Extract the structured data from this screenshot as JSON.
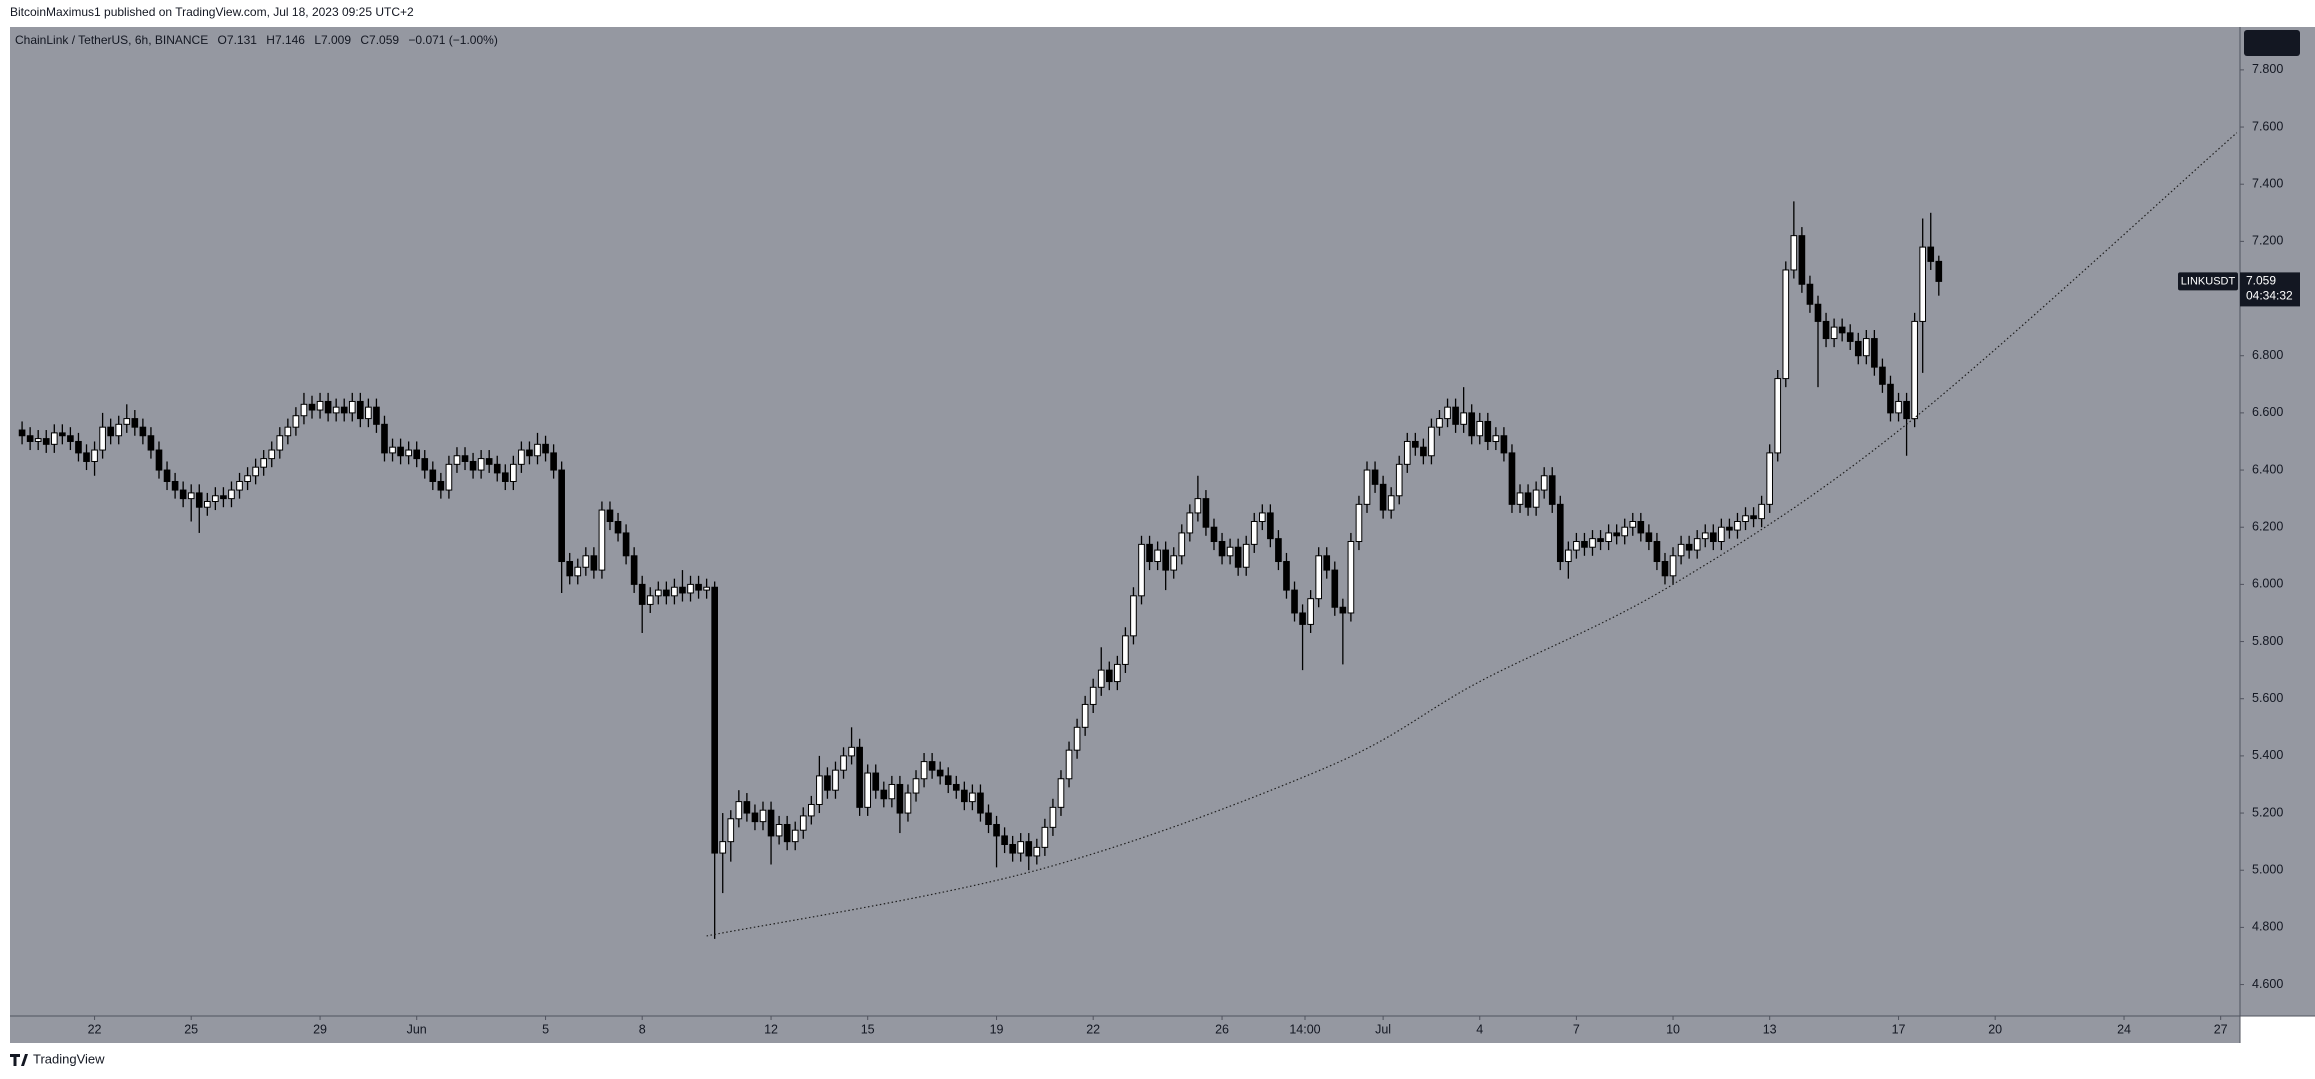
{
  "chart_data": {
    "type": "candlestick",
    "publisher": "BitcoinMaximus1 published on TradingView.com, Jul 18, 2023 09:25 UTC+2",
    "legend": {
      "symbol": "ChainLink / TetherUS, 6h, BINANCE",
      "o_label": "O",
      "o_value": "7.131",
      "h_label": "H",
      "h_value": "7.146",
      "l_label": "L",
      "l_value": "7.009",
      "c_label": "C",
      "c_value": "7.059",
      "change": "−0.071 (−1.00%)"
    },
    "badge": {
      "symbol": "LINKUSDT",
      "price": "7.059",
      "countdown": "04:34:32"
    },
    "watermark": "TradingView",
    "background": "#9598a1",
    "up_color": "#ffffff",
    "down_color": "#000000",
    "wick_color": "#000000",
    "grid": false,
    "xlim": [
      -1.5,
      275.4
    ],
    "xticks": [
      {
        "value": 9,
        "label": "22"
      },
      {
        "value": 21,
        "label": "25"
      },
      {
        "value": 37,
        "label": "29"
      },
      {
        "value": 49,
        "label": "Jun"
      },
      {
        "value": 65,
        "label": "5"
      },
      {
        "value": 77,
        "label": "8"
      },
      {
        "value": 93,
        "label": "12"
      },
      {
        "value": 105,
        "label": "15"
      },
      {
        "value": 121,
        "label": "19"
      },
      {
        "value": 133,
        "label": "22"
      },
      {
        "value": 149,
        "label": "26"
      },
      {
        "value": 159.3,
        "label": "14:00"
      },
      {
        "value": 169,
        "label": "Jul"
      },
      {
        "value": 181,
        "label": "4"
      },
      {
        "value": 193,
        "label": "7"
      },
      {
        "value": 205,
        "label": "10"
      },
      {
        "value": 217,
        "label": "13"
      },
      {
        "value": 233,
        "label": "17"
      },
      {
        "value": 245,
        "label": "20"
      },
      {
        "value": 261,
        "label": "24"
      },
      {
        "value": 273,
        "label": "27"
      }
    ],
    "ylim": [
      4.49,
      7.95
    ],
    "yticks": [
      {
        "value": 4.6,
        "label": "4.600"
      },
      {
        "value": 4.8,
        "label": "4.800"
      },
      {
        "value": 5.0,
        "label": "5.000"
      },
      {
        "value": 5.2,
        "label": "5.200"
      },
      {
        "value": 5.4,
        "label": "5.400"
      },
      {
        "value": 5.6,
        "label": "5.600"
      },
      {
        "value": 5.8,
        "label": "5.800"
      },
      {
        "value": 6.0,
        "label": "6.000"
      },
      {
        "value": 6.2,
        "label": "6.200"
      },
      {
        "value": 6.4,
        "label": "6.400"
      },
      {
        "value": 6.6,
        "label": "6.600"
      },
      {
        "value": 6.8,
        "label": "6.800"
      },
      {
        "value": 7.0,
        "label": "7.000"
      },
      {
        "value": 7.2,
        "label": "7.200"
      },
      {
        "value": 7.4,
        "label": "7.400"
      },
      {
        "value": 7.6,
        "label": "7.600"
      },
      {
        "value": 7.8,
        "label": "7.800"
      }
    ],
    "open": [
      6.54,
      6.52,
      6.5,
      6.51,
      6.49,
      6.53,
      6.52,
      6.5,
      6.46,
      6.43,
      6.47,
      6.55,
      6.52,
      6.56,
      6.58,
      6.55,
      6.52,
      6.47,
      6.4,
      6.36,
      6.33,
      6.3,
      6.32,
      6.27,
      6.29,
      6.31,
      6.3,
      6.33,
      6.36,
      6.38,
      6.41,
      6.44,
      6.47,
      6.52,
      6.55,
      6.59,
      6.63,
      6.61,
      6.64,
      6.6,
      6.62,
      6.6,
      6.64,
      6.58,
      6.62,
      6.56,
      6.46,
      6.48,
      6.45,
      6.47,
      6.44,
      6.4,
      6.36,
      6.33,
      6.42,
      6.45,
      6.43,
      6.4,
      6.44,
      6.42,
      6.39,
      6.36,
      6.42,
      6.47,
      6.45,
      6.49,
      6.46,
      6.4,
      6.08,
      6.03,
      6.06,
      6.1,
      6.05,
      6.26,
      6.22,
      6.18,
      6.1,
      6.0,
      5.93,
      5.96,
      5.98,
      5.96,
      5.99,
      5.97,
      6.0,
      5.98,
      5.99,
      5.06,
      5.1,
      5.18,
      5.24,
      5.2,
      5.17,
      5.21,
      5.12,
      5.16,
      5.1,
      5.14,
      5.19,
      5.23,
      5.33,
      5.28,
      5.35,
      5.4,
      5.43,
      5.22,
      5.34,
      5.28,
      5.25,
      5.3,
      5.2,
      5.27,
      5.32,
      5.38,
      5.35,
      5.33,
      5.3,
      5.28,
      5.24,
      5.27,
      5.2,
      5.16,
      5.12,
      5.09,
      5.06,
      5.1,
      5.05,
      5.08,
      5.15,
      5.22,
      5.32,
      5.42,
      5.5,
      5.58,
      5.64,
      5.7,
      5.66,
      5.72,
      5.82,
      5.96,
      6.14,
      6.08,
      6.12,
      6.05,
      6.1,
      6.18,
      6.25,
      6.3,
      6.2,
      6.15,
      6.1,
      6.13,
      6.06,
      6.14,
      6.22,
      6.25,
      6.16,
      6.08,
      5.98,
      5.9,
      5.86,
      5.95,
      6.1,
      6.05,
      5.92,
      5.9,
      6.15,
      6.28,
      6.4,
      6.35,
      6.26,
      6.31,
      6.42,
      6.5,
      6.48,
      6.45,
      6.55,
      6.58,
      6.62,
      6.56,
      6.6,
      6.52,
      6.57,
      6.5,
      6.52,
      6.46,
      6.28,
      6.32,
      6.27,
      6.33,
      6.38,
      6.28,
      6.08,
      6.12,
      6.15,
      6.13,
      6.16,
      6.15,
      6.18,
      6.17,
      6.2,
      6.22,
      6.18,
      6.15,
      6.08,
      6.03,
      6.1,
      6.14,
      6.12,
      6.16,
      6.18,
      6.15,
      6.2,
      6.19,
      6.22,
      6.24,
      6.23,
      6.28,
      6.46,
      6.72,
      7.1,
      7.22,
      7.05,
      6.98,
      6.92,
      6.86,
      6.9,
      6.88,
      6.85,
      6.8,
      6.86,
      6.76,
      6.7,
      6.6,
      6.64,
      6.58,
      6.92,
      7.18,
      7.13
    ],
    "high": [
      6.57,
      6.55,
      6.54,
      6.54,
      6.56,
      6.56,
      6.55,
      6.53,
      6.49,
      6.5,
      6.6,
      6.58,
      6.59,
      6.63,
      6.61,
      6.58,
      6.55,
      6.5,
      6.43,
      6.39,
      6.36,
      6.35,
      6.35,
      6.32,
      6.34,
      6.34,
      6.36,
      6.39,
      6.41,
      6.44,
      6.47,
      6.5,
      6.55,
      6.58,
      6.62,
      6.67,
      6.66,
      6.67,
      6.67,
      6.65,
      6.65,
      6.67,
      6.67,
      6.65,
      6.65,
      6.59,
      6.51,
      6.51,
      6.5,
      6.5,
      6.47,
      6.43,
      6.39,
      6.45,
      6.48,
      6.48,
      6.46,
      6.47,
      6.47,
      6.45,
      6.42,
      6.45,
      6.5,
      6.5,
      6.53,
      6.52,
      6.49,
      6.43,
      6.11,
      6.09,
      6.13,
      6.13,
      6.29,
      6.29,
      6.25,
      6.21,
      6.13,
      6.03,
      5.99,
      6.01,
      6.01,
      6.02,
      6.05,
      6.03,
      6.03,
      6.02,
      6.01,
      5.2,
      5.21,
      5.28,
      5.27,
      5.23,
      5.24,
      5.24,
      5.19,
      5.19,
      5.17,
      5.22,
      5.26,
      5.4,
      5.36,
      5.38,
      5.43,
      5.5,
      5.46,
      5.37,
      5.37,
      5.31,
      5.33,
      5.33,
      5.3,
      5.35,
      5.41,
      5.41,
      5.38,
      5.36,
      5.33,
      5.31,
      5.3,
      5.3,
      5.23,
      5.19,
      5.15,
      5.12,
      5.13,
      5.13,
      5.11,
      5.18,
      5.25,
      5.35,
      5.45,
      5.53,
      5.61,
      5.67,
      5.78,
      5.73,
      5.75,
      5.85,
      5.99,
      6.17,
      6.17,
      6.15,
      6.15,
      6.13,
      6.21,
      6.28,
      6.38,
      6.33,
      6.23,
      6.18,
      6.16,
      6.16,
      6.17,
      6.25,
      6.28,
      6.28,
      6.19,
      6.11,
      6.01,
      5.93,
      5.98,
      6.13,
      6.13,
      6.08,
      5.95,
      6.18,
      6.31,
      6.43,
      6.43,
      6.38,
      6.34,
      6.45,
      6.53,
      6.53,
      6.51,
      6.58,
      6.61,
      6.65,
      6.65,
      6.69,
      6.63,
      6.6,
      6.6,
      6.55,
      6.55,
      6.49,
      6.35,
      6.35,
      6.36,
      6.41,
      6.41,
      6.31,
      6.15,
      6.18,
      6.18,
      6.19,
      6.19,
      6.21,
      6.21,
      6.23,
      6.25,
      6.25,
      6.21,
      6.18,
      6.11,
      6.13,
      6.17,
      6.17,
      6.19,
      6.21,
      6.21,
      6.23,
      6.23,
      6.25,
      6.27,
      6.27,
      6.31,
      6.49,
      6.75,
      7.13,
      7.34,
      7.25,
      7.08,
      7.01,
      6.95,
      6.93,
      6.93,
      6.91,
      6.88,
      6.89,
      6.89,
      6.79,
      6.73,
      6.67,
      6.67,
      6.95,
      7.28,
      7.3,
      7.15
    ],
    "low": [
      6.49,
      6.47,
      6.47,
      6.46,
      6.46,
      6.49,
      6.47,
      6.43,
      6.4,
      6.38,
      6.44,
      6.49,
      6.49,
      6.53,
      6.52,
      6.49,
      6.44,
      6.37,
      6.33,
      6.3,
      6.27,
      6.22,
      6.18,
      6.24,
      6.26,
      6.27,
      6.27,
      6.3,
      6.33,
      6.35,
      6.38,
      6.41,
      6.44,
      6.49,
      6.52,
      6.56,
      6.58,
      6.58,
      6.57,
      6.57,
      6.57,
      6.57,
      6.55,
      6.55,
      6.53,
      6.43,
      6.43,
      6.42,
      6.42,
      6.41,
      6.37,
      6.33,
      6.3,
      6.3,
      6.39,
      6.4,
      6.37,
      6.37,
      6.39,
      6.36,
      6.33,
      6.33,
      6.39,
      6.42,
      6.42,
      6.43,
      6.37,
      5.97,
      6.0,
      6.0,
      6.03,
      6.02,
      6.02,
      6.19,
      6.15,
      6.07,
      5.97,
      5.83,
      5.9,
      5.93,
      5.93,
      5.93,
      5.94,
      5.94,
      5.95,
      5.95,
      4.76,
      4.92,
      5.03,
      5.15,
      5.17,
      5.14,
      5.14,
      5.02,
      5.09,
      5.07,
      5.07,
      5.11,
      5.16,
      5.2,
      5.25,
      5.25,
      5.32,
      5.37,
      5.19,
      5.19,
      5.25,
      5.22,
      5.22,
      5.13,
      5.17,
      5.24,
      5.29,
      5.32,
      5.3,
      5.27,
      5.25,
      5.21,
      5.21,
      5.17,
      5.13,
      5.01,
      5.06,
      5.03,
      5.03,
      5.0,
      5.02,
      5.05,
      5.12,
      5.19,
      5.29,
      5.39,
      5.47,
      5.55,
      5.61,
      5.63,
      5.63,
      5.69,
      5.79,
      5.93,
      6.05,
      6.05,
      5.98,
      6.02,
      6.07,
      6.15,
      6.22,
      6.17,
      6.12,
      6.07,
      6.07,
      6.03,
      6.03,
      6.11,
      6.19,
      6.13,
      6.05,
      5.95,
      5.87,
      5.7,
      5.83,
      5.92,
      6.02,
      5.89,
      5.72,
      5.87,
      6.12,
      6.25,
      6.32,
      6.23,
      6.23,
      6.28,
      6.39,
      6.45,
      6.42,
      6.42,
      6.52,
      6.55,
      6.53,
      6.53,
      6.49,
      6.49,
      6.47,
      6.47,
      6.43,
      6.25,
      6.25,
      6.24,
      6.24,
      6.3,
      6.25,
      6.05,
      6.02,
      6.09,
      6.1,
      6.1,
      6.12,
      6.12,
      6.14,
      6.14,
      6.17,
      6.15,
      6.12,
      6.05,
      6.0,
      6.0,
      6.07,
      6.09,
      6.09,
      6.13,
      6.12,
      6.12,
      6.16,
      6.16,
      6.19,
      6.2,
      6.2,
      6.25,
      6.43,
      6.69,
      7.07,
      7.02,
      6.95,
      6.69,
      6.83,
      6.83,
      6.85,
      6.82,
      6.77,
      6.77,
      6.73,
      6.67,
      6.57,
      6.57,
      6.45,
      6.55,
      6.74,
      7.1,
      7.01
    ],
    "close": [
      6.52,
      6.5,
      6.51,
      6.49,
      6.53,
      6.52,
      6.5,
      6.46,
      6.43,
      6.47,
      6.55,
      6.52,
      6.56,
      6.58,
      6.55,
      6.52,
      6.47,
      6.4,
      6.36,
      6.33,
      6.3,
      6.32,
      6.27,
      6.29,
      6.31,
      6.3,
      6.33,
      6.36,
      6.38,
      6.41,
      6.44,
      6.47,
      6.52,
      6.55,
      6.59,
      6.63,
      6.61,
      6.64,
      6.6,
      6.62,
      6.6,
      6.64,
      6.58,
      6.62,
      6.56,
      6.46,
      6.48,
      6.45,
      6.47,
      6.44,
      6.4,
      6.36,
      6.33,
      6.42,
      6.45,
      6.43,
      6.4,
      6.44,
      6.42,
      6.39,
      6.36,
      6.42,
      6.47,
      6.45,
      6.49,
      6.46,
      6.4,
      6.08,
      6.03,
      6.06,
      6.1,
      6.05,
      6.26,
      6.22,
      6.18,
      6.1,
      6.0,
      5.93,
      5.96,
      5.98,
      5.96,
      5.99,
      5.97,
      6.0,
      5.98,
      5.99,
      5.06,
      5.1,
      5.18,
      5.24,
      5.2,
      5.17,
      5.21,
      5.12,
      5.16,
      5.1,
      5.14,
      5.19,
      5.23,
      5.33,
      5.28,
      5.35,
      5.4,
      5.43,
      5.22,
      5.34,
      5.28,
      5.25,
      5.3,
      5.2,
      5.27,
      5.32,
      5.38,
      5.35,
      5.33,
      5.3,
      5.28,
      5.24,
      5.27,
      5.2,
      5.16,
      5.12,
      5.09,
      5.06,
      5.1,
      5.05,
      5.08,
      5.15,
      5.22,
      5.32,
      5.42,
      5.5,
      5.58,
      5.64,
      5.7,
      5.66,
      5.72,
      5.82,
      5.96,
      6.14,
      6.08,
      6.12,
      6.05,
      6.1,
      6.18,
      6.25,
      6.3,
      6.2,
      6.15,
      6.1,
      6.13,
      6.06,
      6.14,
      6.22,
      6.25,
      6.16,
      6.08,
      5.98,
      5.9,
      5.86,
      5.95,
      6.1,
      6.05,
      5.92,
      5.9,
      6.15,
      6.28,
      6.4,
      6.35,
      6.26,
      6.31,
      6.42,
      6.5,
      6.48,
      6.45,
      6.55,
      6.58,
      6.62,
      6.56,
      6.6,
      6.52,
      6.57,
      6.5,
      6.52,
      6.46,
      6.28,
      6.32,
      6.27,
      6.33,
      6.38,
      6.28,
      6.08,
      6.12,
      6.15,
      6.13,
      6.16,
      6.15,
      6.18,
      6.17,
      6.2,
      6.22,
      6.18,
      6.15,
      6.08,
      6.03,
      6.1,
      6.14,
      6.12,
      6.16,
      6.18,
      6.15,
      6.2,
      6.19,
      6.22,
      6.24,
      6.23,
      6.28,
      6.46,
      6.72,
      7.1,
      7.22,
      7.05,
      6.98,
      6.92,
      6.86,
      6.9,
      6.88,
      6.85,
      6.8,
      6.86,
      6.76,
      6.7,
      6.6,
      6.64,
      6.58,
      6.92,
      7.18,
      7.13,
      7.06
    ],
    "trendline": {
      "x": [
        85,
        126,
        162,
        181,
        205,
        234,
        275
      ],
      "values": [
        4.77,
        5.0,
        5.36,
        5.66,
        6.0,
        6.56,
        7.58
      ],
      "color": "#1e1e1e"
    }
  }
}
